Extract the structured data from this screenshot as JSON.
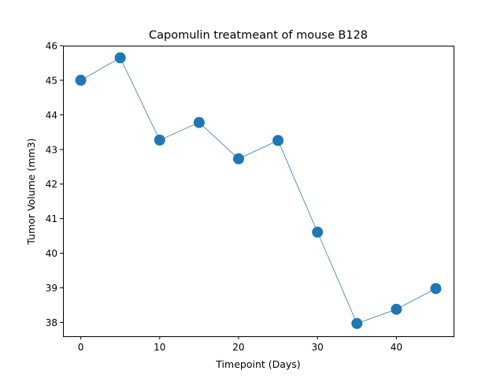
{
  "chart_data": {
    "type": "line",
    "title": "Capomulin treatmeant of mouse B128",
    "xlabel": "Timepoint (Days)",
    "ylabel": "Tumor Volume (mm3)",
    "xlim": [
      -2.25,
      47.25
    ],
    "ylim": [
      37.6,
      46.0
    ],
    "xticks": [
      0,
      10,
      20,
      30,
      40
    ],
    "yticks": [
      38,
      39,
      40,
      41,
      42,
      43,
      44,
      45,
      46
    ],
    "grid": false,
    "series": [
      {
        "x": [
          0,
          5,
          10,
          15,
          20,
          25,
          30,
          35,
          40,
          45
        ],
        "y": [
          45.0,
          45.65,
          43.27,
          43.78,
          42.73,
          43.26,
          40.61,
          37.97,
          38.38,
          38.98
        ],
        "color": "#1f77b4",
        "marker": "circle"
      }
    ]
  }
}
